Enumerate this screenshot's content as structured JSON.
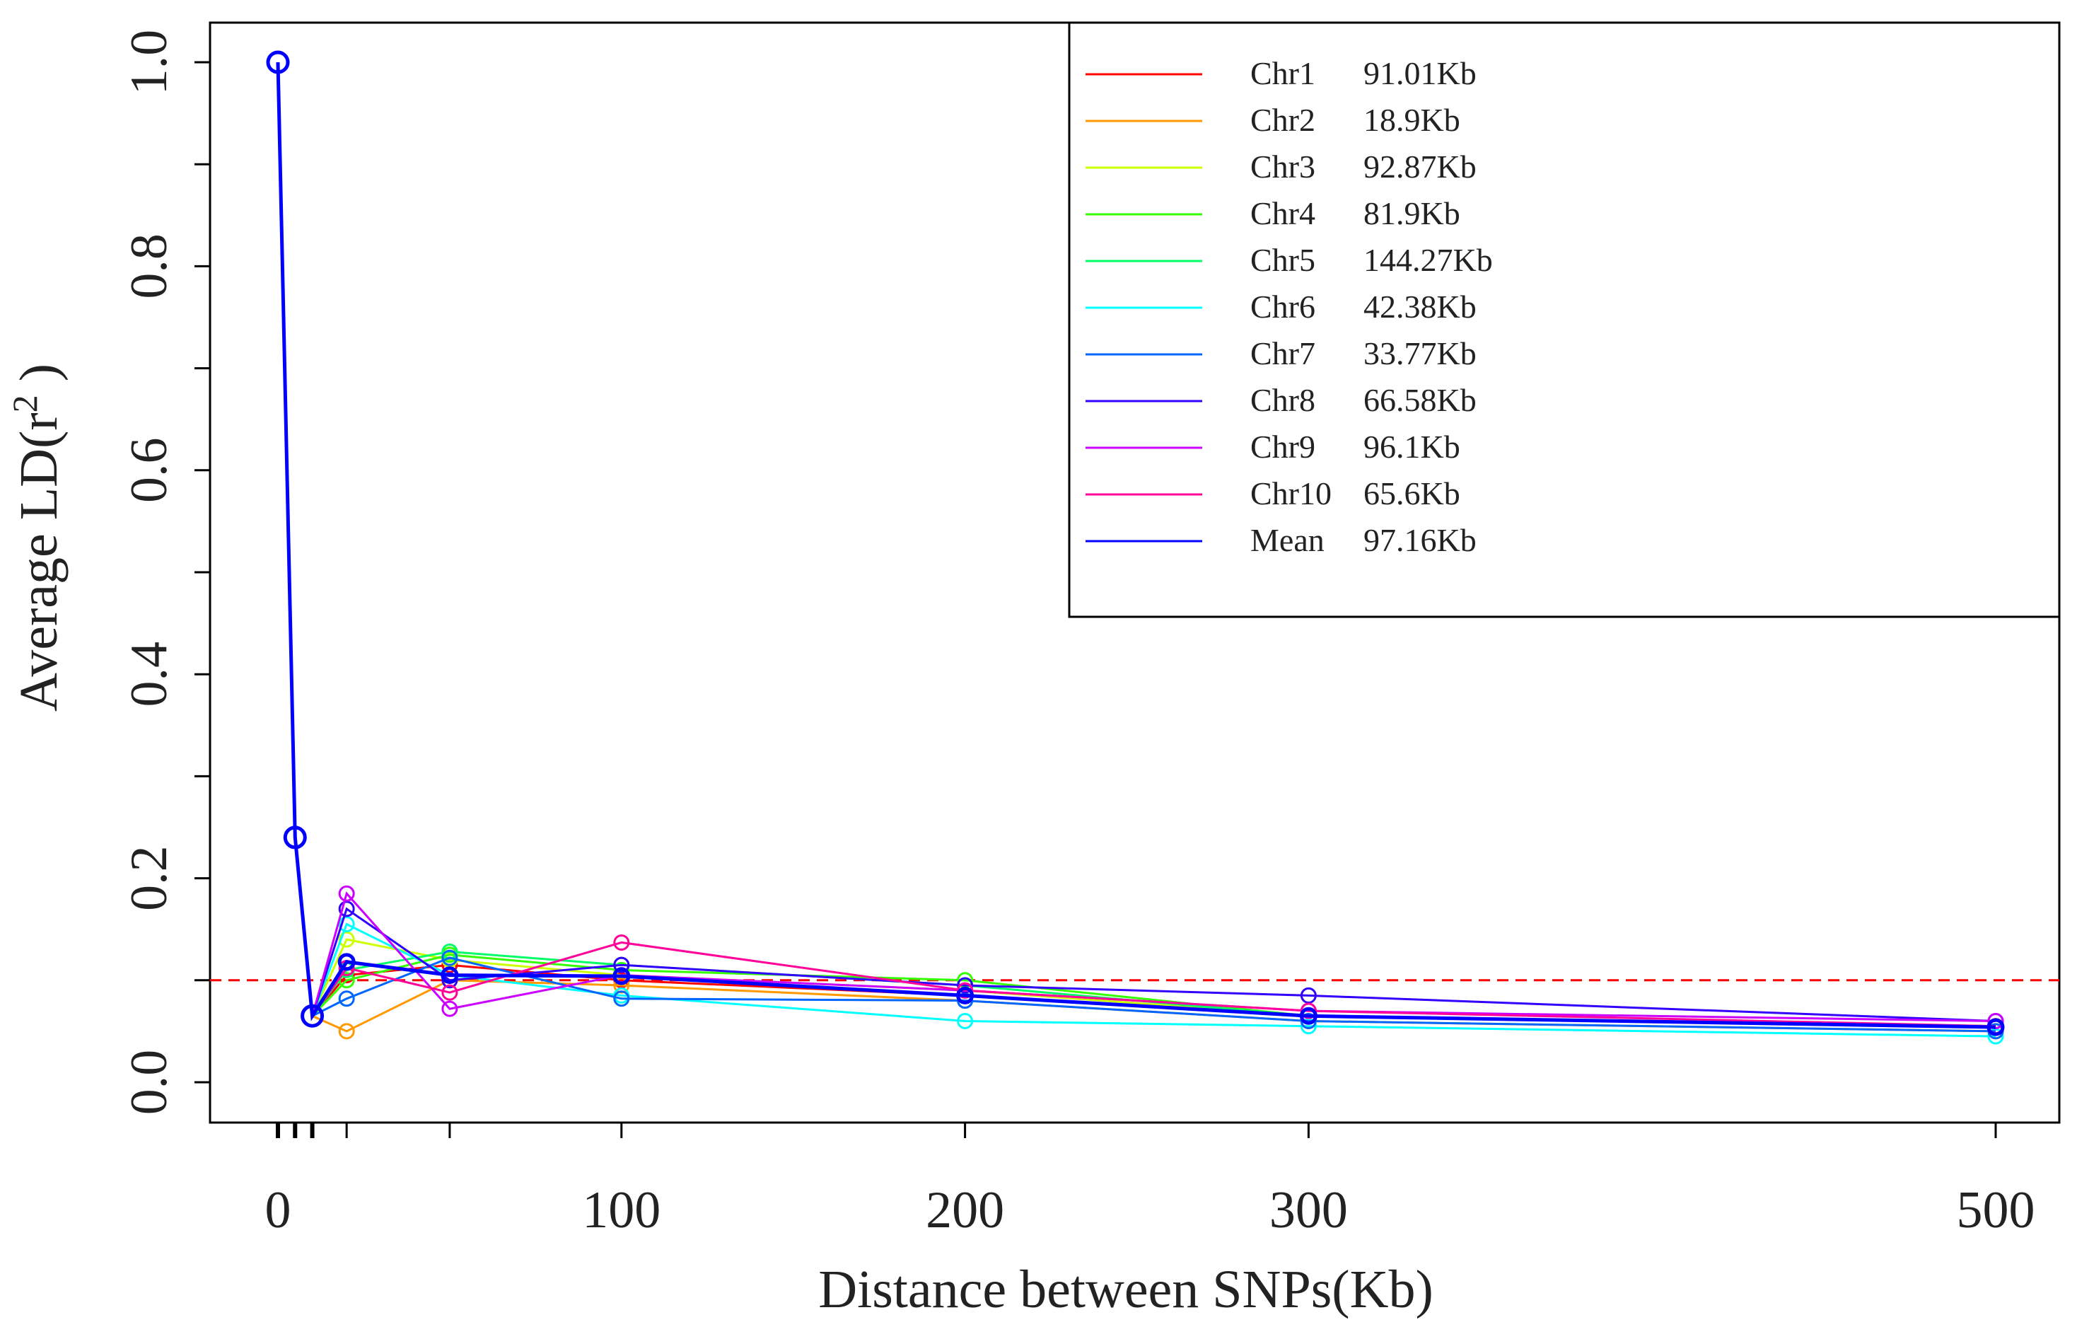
{
  "chart_data": {
    "type": "line",
    "xlabel": "Distance between SNPs(Kb)",
    "ylabel": "Average LD(r",
    "ylabel_superscript": "2",
    "ylabel_close": " )",
    "x_ticks": [
      0,
      100,
      200,
      300,
      500
    ],
    "x_tick_labels": [
      "0",
      "100",
      "200",
      "300",
      "500"
    ],
    "y_ticks": [
      0.0,
      0.2,
      0.4,
      0.6,
      0.8,
      1.0
    ],
    "y_tick_labels": [
      "0.0",
      "0.2",
      "0.4",
      "0.6",
      "0.8",
      "1.0"
    ],
    "x_major_positions": [
      0,
      5,
      10,
      20,
      50,
      100,
      200,
      300,
      500
    ],
    "ylim": [
      -0.08,
      1.08
    ],
    "threshold": {
      "y": 0.1,
      "color": "#ff0000",
      "style": "dashed"
    },
    "legend_position": "top-right",
    "x": [
      0,
      5,
      10,
      20,
      50,
      100,
      200,
      300,
      500
    ],
    "series": [
      {
        "name": "Chr1",
        "ld_decay": "91.01Kb",
        "color": "#ff0000",
        "values": [
          1.0,
          0.24,
          0.065,
          0.105,
          0.115,
          0.1,
          0.085,
          0.065,
          0.055
        ]
      },
      {
        "name": "Chr2",
        "ld_decay": "18.9Kb",
        "color": "#ff9900",
        "values": [
          1.0,
          0.24,
          0.065,
          0.05,
          0.1,
          0.095,
          0.08,
          0.06,
          0.05
        ]
      },
      {
        "name": "Chr3",
        "ld_decay": "92.87Kb",
        "color": "#ccff00",
        "values": [
          1.0,
          0.24,
          0.065,
          0.14,
          0.12,
          0.105,
          0.09,
          0.065,
          0.055
        ]
      },
      {
        "name": "Chr4",
        "ld_decay": "81.9Kb",
        "color": "#33ff00",
        "values": [
          1.0,
          0.24,
          0.065,
          0.1,
          0.125,
          0.11,
          0.1,
          0.065,
          0.055
        ]
      },
      {
        "name": "Chr5",
        "ld_decay": "144.27Kb",
        "color": "#00ff66",
        "values": [
          1.0,
          0.24,
          0.065,
          0.11,
          0.128,
          0.115,
          0.095,
          0.065,
          0.055
        ]
      },
      {
        "name": "Chr6",
        "ld_decay": "42.38Kb",
        "color": "#00ffff",
        "values": [
          1.0,
          0.24,
          0.065,
          0.155,
          0.105,
          0.085,
          0.06,
          0.055,
          0.045
        ]
      },
      {
        "name": "Chr7",
        "ld_decay": "33.77Kb",
        "color": "#0066ff",
        "values": [
          1.0,
          0.24,
          0.065,
          0.082,
          0.122,
          0.082,
          0.08,
          0.06,
          0.05
        ]
      },
      {
        "name": "Chr8",
        "ld_decay": "66.58Kb",
        "color": "#3300ff",
        "values": [
          1.0,
          0.24,
          0.065,
          0.17,
          0.1,
          0.115,
          0.095,
          0.085,
          0.06
        ]
      },
      {
        "name": "Chr9",
        "ld_decay": "96.1Kb",
        "color": "#cc00ff",
        "values": [
          1.0,
          0.24,
          0.065,
          0.185,
          0.072,
          0.105,
          0.09,
          0.07,
          0.06
        ]
      },
      {
        "name": "Chr10",
        "ld_decay": "65.6Kb",
        "color": "#ff0099",
        "values": [
          1.0,
          0.24,
          0.065,
          0.112,
          0.088,
          0.137,
          0.09,
          0.07,
          0.055
        ]
      },
      {
        "name": "Mean",
        "ld_decay": "97.16Kb",
        "color": "#0000ff",
        "values": [
          1.0,
          0.24,
          0.065,
          0.118,
          0.105,
          0.104,
          0.085,
          0.065,
          0.054
        ]
      }
    ]
  }
}
